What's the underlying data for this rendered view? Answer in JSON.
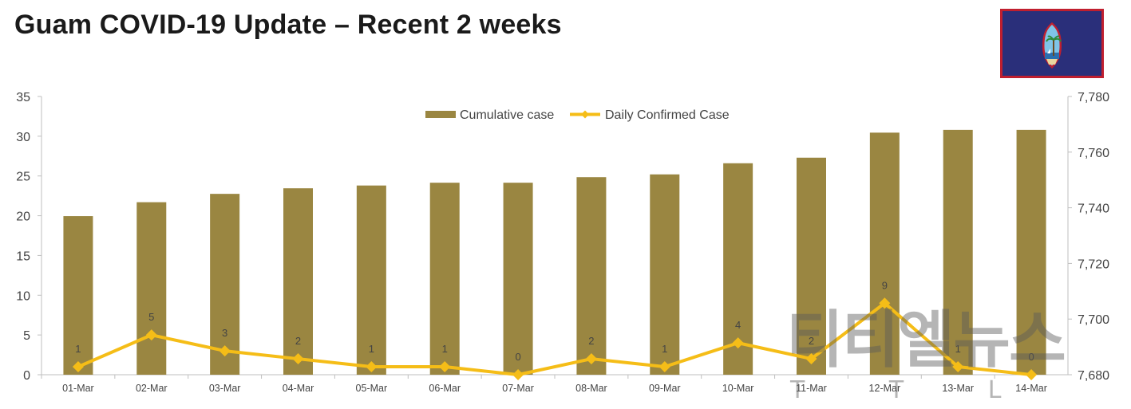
{
  "page": {
    "title": "Guam COVID-19 Update – Recent 2 weeks",
    "watermark": "티티엘뉴스",
    "watermark_sub": "T T L"
  },
  "colors": {
    "bar": "#9a8641",
    "line": "#f5bd17",
    "flag_blue": "#2a2f7a",
    "flag_border": "#c01f2f"
  },
  "icons": {
    "flag": "guam-flag-icon"
  },
  "chart_data": {
    "type": "bar+line",
    "categories": [
      "01-Mar",
      "02-Mar",
      "03-Mar",
      "04-Mar",
      "05-Mar",
      "06-Mar",
      "07-Mar",
      "08-Mar",
      "09-Mar",
      "10-Mar",
      "11-Mar",
      "12-Mar",
      "13-Mar",
      "14-Mar"
    ],
    "series": [
      {
        "name": "Cumulative case",
        "type": "bar",
        "axis": "right",
        "values": [
          7737,
          7742,
          7745,
          7747,
          7748,
          7749,
          7749,
          7751,
          7752,
          7756,
          7758,
          7767,
          7768,
          7768
        ]
      },
      {
        "name": "Daily Confirmed Case",
        "type": "line",
        "axis": "left",
        "values": [
          1,
          5,
          3,
          2,
          1,
          1,
          0,
          2,
          1,
          4,
          2,
          9,
          1,
          0
        ]
      }
    ],
    "y_left": {
      "range": [
        0,
        35
      ],
      "ticks": [
        "0",
        "5",
        "10",
        "15",
        "20",
        "25",
        "30",
        "35"
      ]
    },
    "y_right": {
      "range": [
        7680,
        7780
      ],
      "ticks": [
        "7,680",
        "7,700",
        "7,720",
        "7,740",
        "7,760",
        "7,780"
      ]
    },
    "legend_position": "top-center",
    "grid": false
  }
}
